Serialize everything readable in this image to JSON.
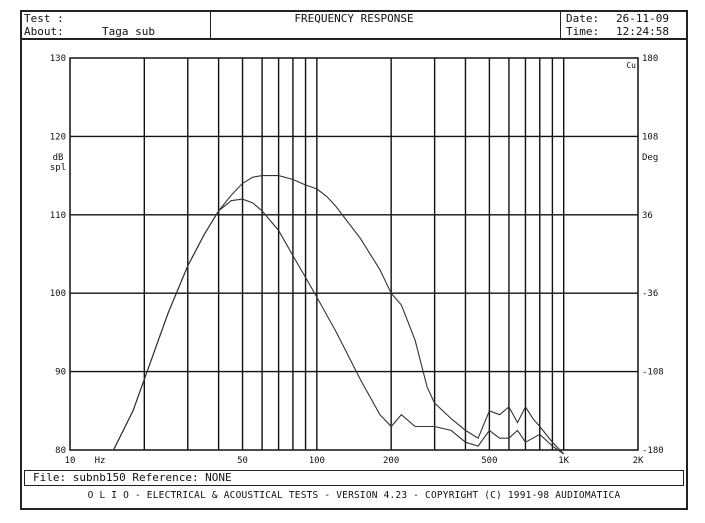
{
  "header": {
    "test_label": "Test :",
    "about_label": "About:",
    "about_value": "Taga sub",
    "title": "FREQUENCY RESPONSE",
    "date_label": "Date:",
    "date_value": "26-11-09",
    "time_label": "Time:",
    "time_value": "12:24:58"
  },
  "footer": {
    "file_line": "File: subnb150 Reference: NONE",
    "copyright": "O L I O  -  ELECTRICAL & ACOUSTICAL TESTS  -  VERSION 4.23  -  COPYRIGHT (C) 1991-98 AUDIOMATICA"
  },
  "chart_data": {
    "type": "line",
    "title": "FREQUENCY RESPONSE",
    "xscale": "log",
    "xlim": [
      10,
      2000
    ],
    "xticks": [
      {
        "v": 10,
        "label": "10"
      },
      {
        "v": 50,
        "label": "50"
      },
      {
        "v": 100,
        "label": "100"
      },
      {
        "v": 200,
        "label": "200"
      },
      {
        "v": 500,
        "label": "500"
      },
      {
        "v": 1000,
        "label": "1K"
      },
      {
        "v": 2000,
        "label": "2K"
      }
    ],
    "xunit": "Hz",
    "ylim_left": [
      80,
      130
    ],
    "yticks_left": [
      80,
      90,
      100,
      110,
      120,
      130
    ],
    "ylabel_left": "dB spl",
    "ylim_right": [
      -180,
      180
    ],
    "yticks_right": [
      -180,
      -108,
      -36,
      36,
      108,
      180
    ],
    "ylabel_right": "Deg",
    "right_top_label": "Cu",
    "grid": true,
    "legend": "none",
    "line_color": "#333333",
    "grid_color": "#111111",
    "series": [
      {
        "x": [
          15,
          18,
          20,
          25,
          30,
          35,
          40,
          45,
          50,
          55,
          60,
          70,
          80,
          90,
          100,
          110,
          120,
          150,
          180,
          200,
          220,
          250,
          280,
          300,
          350,
          400,
          450,
          500,
          550,
          600,
          650,
          700,
          750,
          800,
          900,
          1000
        ],
        "y": [
          80.0,
          85.0,
          89.0,
          97.5,
          103.5,
          107.5,
          110.5,
          112.5,
          114.0,
          114.8,
          115.0,
          115.0,
          114.5,
          113.8,
          113.3,
          112.3,
          111.0,
          107.0,
          103.0,
          100.0,
          98.5,
          94.0,
          88.0,
          86.0,
          84.0,
          82.5,
          81.5,
          85.0,
          84.5,
          85.5,
          83.5,
          85.5,
          84.0,
          83.0,
          81.0,
          79.5
        ]
      },
      {
        "x": [
          15,
          18,
          20,
          25,
          30,
          35,
          40,
          45,
          50,
          55,
          60,
          70,
          80,
          90,
          100,
          120,
          150,
          180,
          200,
          220,
          250,
          280,
          300,
          350,
          400,
          450,
          500,
          550,
          600,
          650,
          700,
          750,
          800,
          900,
          1000
        ],
        "y": [
          80.0,
          85.0,
          89.0,
          97.5,
          103.5,
          107.5,
          110.5,
          111.8,
          112.0,
          111.5,
          110.5,
          108.0,
          104.8,
          102.0,
          99.5,
          95.0,
          89.0,
          84.5,
          83.0,
          84.5,
          83.0,
          83.0,
          83.0,
          82.5,
          81.0,
          80.5,
          82.5,
          81.5,
          81.5,
          82.5,
          81.0,
          81.5,
          82.0,
          80.5,
          79.5
        ]
      }
    ]
  }
}
